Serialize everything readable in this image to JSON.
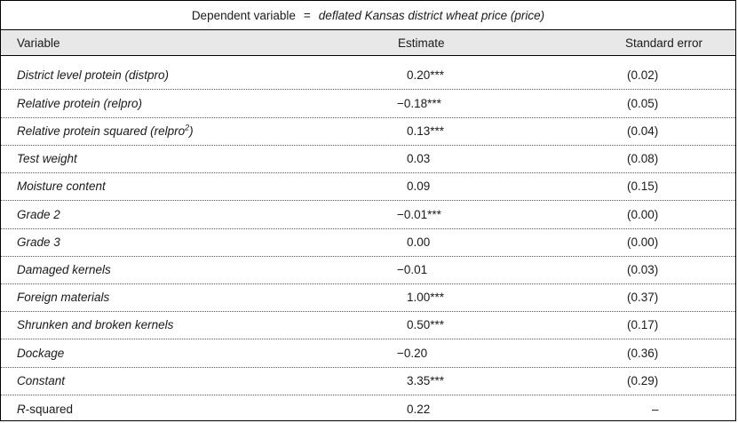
{
  "caption": {
    "prefix": "Dependent variable",
    "equals": "=",
    "description": "deflated Kansas district wheat price (price)"
  },
  "columns": {
    "variable": "Variable",
    "estimate": "Estimate",
    "std_error": "Standard error"
  },
  "rows": [
    {
      "variable": "District level protein (distpro)",
      "estimate": "0.20***",
      "se": "(0.02)"
    },
    {
      "variable": "Relative protein (relpro)",
      "estimate": "−0.18***",
      "se": "(0.05)"
    },
    {
      "variable": "Relative protein squared (relpro",
      "variable_sup": "2",
      "variable_suffix": ")",
      "estimate": "0.13***",
      "se": "(0.04)"
    },
    {
      "variable": "Test weight",
      "estimate": "0.03",
      "se": "(0.08)"
    },
    {
      "variable": "Moisture content",
      "estimate": "0.09",
      "se": "(0.15)"
    },
    {
      "variable": "Grade 2",
      "estimate": "−0.01***",
      "se": "(0.00)"
    },
    {
      "variable": "Grade 3",
      "estimate": "0.00",
      "se": "(0.00)"
    },
    {
      "variable": "Damaged kernels",
      "estimate": "−0.01",
      "se": "(0.03)"
    },
    {
      "variable": "Foreign materials",
      "estimate": "1.00***",
      "se": "(0.37)"
    },
    {
      "variable": "Shrunken and broken kernels",
      "estimate": "0.50***",
      "se": "(0.17)"
    },
    {
      "variable": "Dockage",
      "estimate": "−0.20",
      "se": "(0.36)"
    },
    {
      "variable": "Constant",
      "estimate": "3.35***",
      "se": "(0.29)"
    },
    {
      "variable_italic": "R",
      "variable": "-squared",
      "estimate": "0.22",
      "se": "–"
    }
  ]
}
